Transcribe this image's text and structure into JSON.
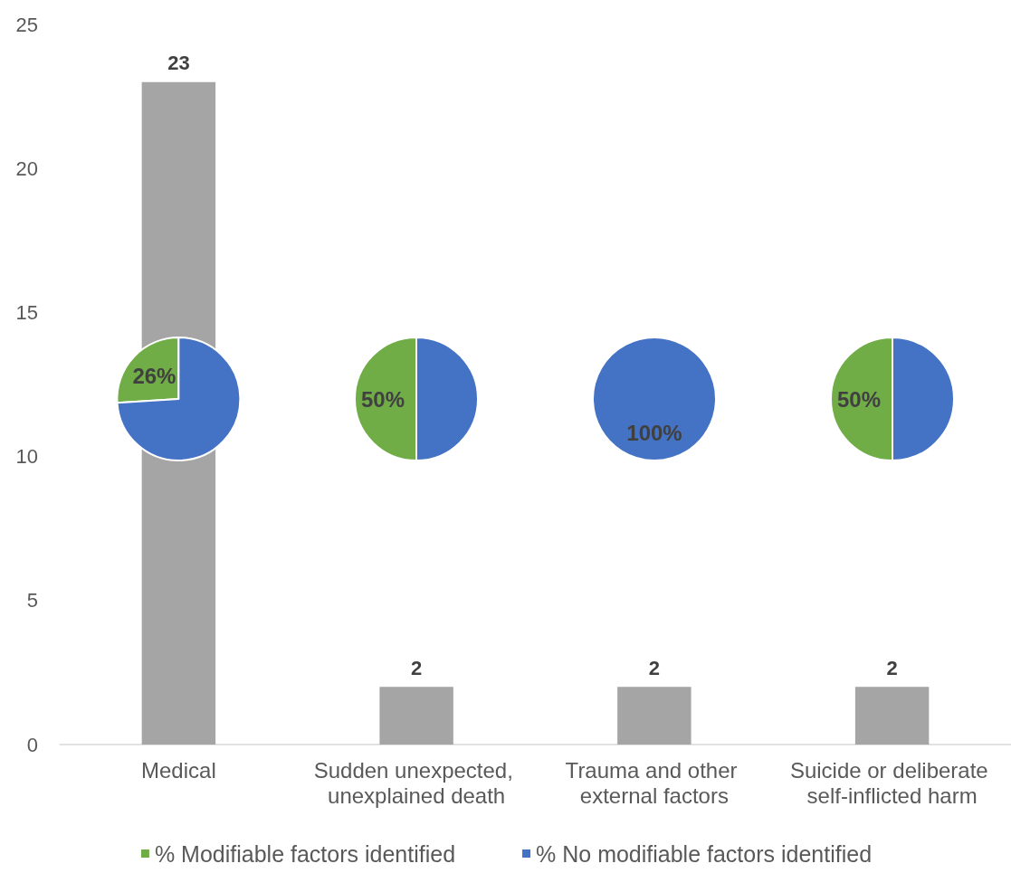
{
  "chart_data": [
    {
      "type": "bar",
      "categories": [
        "Medical",
        "Sudden unexpected, unexplained death",
        "Trauma and other external factors",
        "Suicide or deliberate self-inflicted harm"
      ],
      "values": [
        23,
        2,
        2,
        2
      ],
      "color": "#a5a5a5",
      "value_labels": [
        "23",
        "2",
        "2",
        "2"
      ],
      "ylim": [
        0,
        25
      ],
      "yticks": [
        0,
        5,
        10,
        15,
        20,
        25
      ],
      "grid": false
    },
    {
      "type": "pie",
      "categories": [
        "% Modifiable factors identified",
        "% No modifiable factors identified"
      ],
      "values": [
        26,
        74
      ],
      "colors": [
        "#70ad47",
        "#4472c4"
      ],
      "value_labels": [
        "26%",
        null
      ],
      "legend": "bottom"
    },
    {
      "type": "pie",
      "categories": [
        null,
        null
      ],
      "values": [
        50,
        50
      ],
      "colors": [
        "#70ad47",
        "#4472c4"
      ],
      "value_labels": [
        "50%",
        null
      ]
    },
    {
      "type": "pie",
      "categories": [
        null,
        null
      ],
      "values": [
        0,
        100
      ],
      "colors": [
        "#70ad47",
        "#4472c4"
      ],
      "value_labels": [
        null,
        "100%"
      ]
    },
    {
      "type": "pie",
      "categories": [
        null,
        null
      ],
      "values": [
        50,
        50
      ],
      "colors": [
        "#70ad47",
        "#4472c4"
      ],
      "value_labels": [
        "50%",
        null
      ]
    }
  ]
}
